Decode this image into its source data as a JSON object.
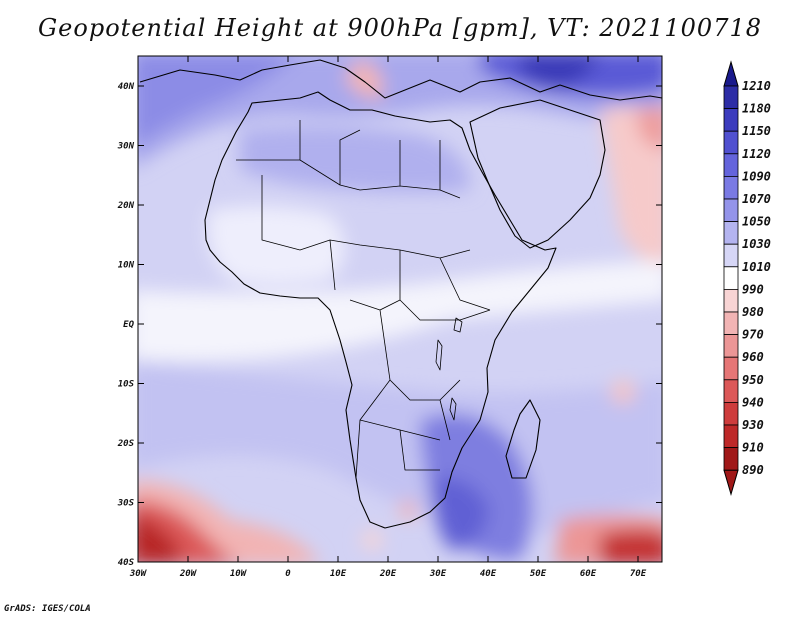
{
  "title": "Geopotential Height at 900hPa [gpm], VT: 2021100718",
  "map": {
    "lat_labels": [
      "40N",
      "30N",
      "20N",
      "10N",
      "EQ",
      "10S",
      "20S",
      "30S",
      "40S"
    ],
    "lon_labels": [
      "30W",
      "20W",
      "10W",
      "0",
      "10E",
      "20E",
      "30E",
      "40E",
      "50E",
      "60E",
      "70E"
    ]
  },
  "colorbar": {
    "levels": [
      "1210",
      "1180",
      "1150",
      "1120",
      "1090",
      "1070",
      "1050",
      "1030",
      "1010",
      "990",
      "980",
      "970",
      "960",
      "950",
      "940",
      "930",
      "910",
      "890"
    ],
    "colors": [
      "#1a1a8c",
      "#2d2da6",
      "#3c3cbe",
      "#5050d0",
      "#6464dc",
      "#7a7ae4",
      "#9494ea",
      "#b4b4f0",
      "#d6d6f6",
      "#ffffff",
      "#f8d4d4",
      "#f2b4b4",
      "#ec9696",
      "#e67676",
      "#dc5858",
      "#ce3c3c",
      "#be2828",
      "#a01818"
    ]
  },
  "credit": "GrADS: IGES/COLA"
}
